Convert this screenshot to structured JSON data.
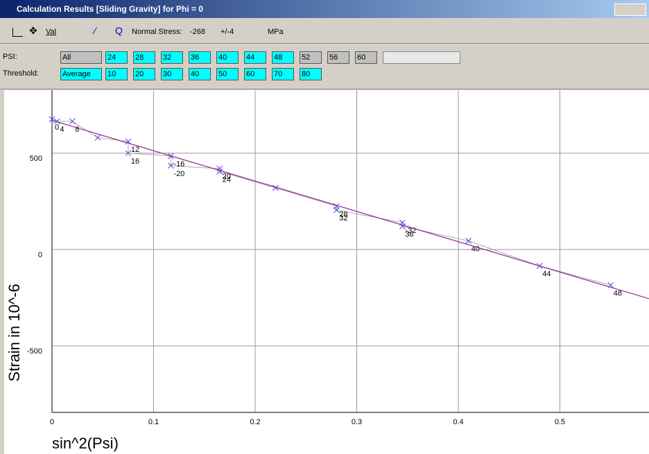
{
  "window": {
    "title": "Calculation Results [Sliding Gravity] for Phi = 0"
  },
  "toolbar": {
    "val": "Val",
    "stress_label": "Normal Stress:",
    "stress_value": "-268",
    "stress_error": "+/-4",
    "unit": "MPa"
  },
  "psi": {
    "label": "PSI:",
    "buttons": [
      "All",
      "24",
      "28",
      "32",
      "36",
      "40",
      "44",
      "48",
      "52",
      "56",
      "60"
    ],
    "active": [
      false,
      true,
      true,
      true,
      true,
      true,
      true,
      true,
      false,
      false,
      false
    ]
  },
  "threshold": {
    "label": "Threshold:",
    "buttons": [
      "Average",
      "10",
      "20",
      "30",
      "40",
      "50",
      "60",
      "70",
      "80"
    ],
    "active": [
      true,
      true,
      true,
      true,
      true,
      true,
      true,
      true,
      true
    ]
  },
  "chart_data": {
    "type": "scatter",
    "x_label": "sin^2(Psi)",
    "y_label": "Strain in 10^-6",
    "xlim": [
      0,
      0.5877
    ],
    "ylim": [
      -845,
      827
    ],
    "xticks": [
      0,
      0.1,
      0.2,
      0.3,
      0.4,
      0.5
    ],
    "yticks": [
      500,
      0,
      -500
    ],
    "grid": true,
    "series": [
      {
        "name": "measured",
        "color": "#4444dd",
        "x": [
          0,
          0.005,
          0.02,
          0.045,
          0.075,
          0.075,
          0.117,
          0.117,
          0.165,
          0.165,
          0.22,
          0.28,
          0.28,
          0.345,
          0.345,
          0.41,
          0.48,
          0.55
        ],
        "values": [
          676,
          665,
          665,
          580,
          560,
          500,
          485,
          435,
          420,
          405,
          320,
          225,
          205,
          140,
          120,
          45,
          -85,
          -185
        ],
        "point_labels": [
          "0",
          "4",
          "8",
          null,
          "12",
          "16",
          "-16",
          "-20",
          "20",
          "24",
          null,
          "28",
          "32",
          "-32",
          "36",
          "40",
          "44",
          "48"
        ]
      }
    ],
    "fit": {
      "color": "#993399",
      "x": [
        0,
        0.5877
      ],
      "values": [
        670,
        -255
      ]
    }
  }
}
